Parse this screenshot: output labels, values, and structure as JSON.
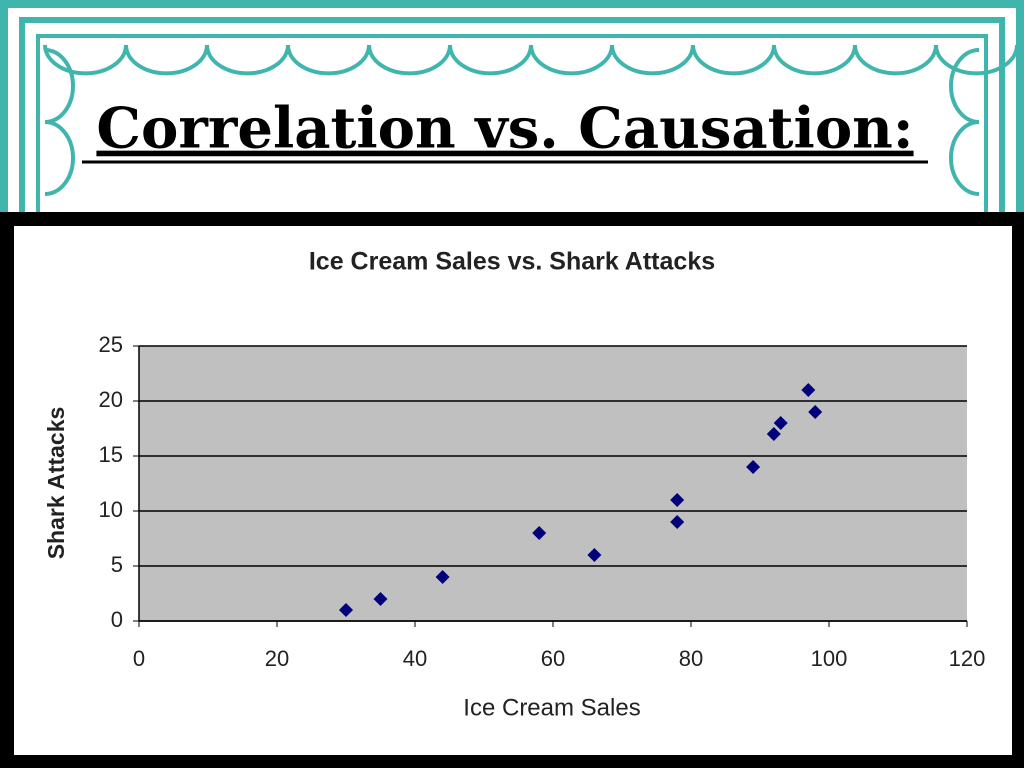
{
  "heading": "Correlation vs. Causation:",
  "chart_data": {
    "type": "scatter",
    "title": "Ice Cream Sales vs. Shark Attacks",
    "x_label": "Ice Cream Sales",
    "y_label": "Shark Attacks",
    "x": [
      30,
      35,
      44,
      58,
      66,
      78,
      78,
      89,
      92,
      93,
      97,
      98
    ],
    "values": [
      1,
      2,
      4,
      8,
      6,
      9,
      11,
      14,
      17,
      18,
      21,
      19
    ],
    "color": "#00007a",
    "xlim": [
      0,
      120
    ],
    "xticks": [
      0,
      20,
      40,
      60,
      80,
      100,
      120
    ],
    "ylim": [
      0,
      25
    ],
    "yticks": [
      0,
      5,
      10,
      15,
      20,
      25
    ],
    "grid": true
  }
}
